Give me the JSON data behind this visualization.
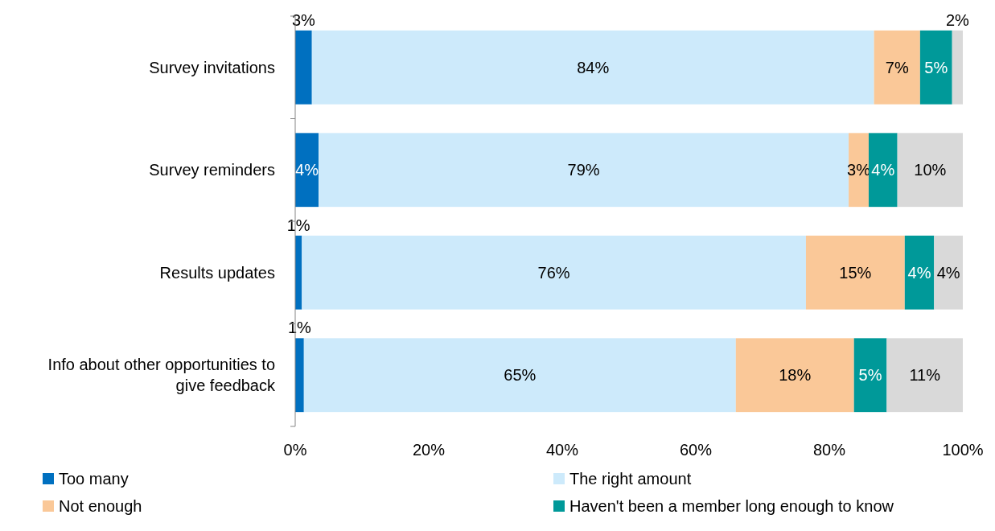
{
  "chart_data": {
    "type": "bar",
    "orientation": "horizontal",
    "stacked": true,
    "categories": [
      "Survey invitations",
      "Survey reminders",
      "Results updates",
      "Info about other opportunities to give feedback"
    ],
    "series": [
      {
        "name": "Too many",
        "color": "#0070c0",
        "values": [
          2.5,
          3.5,
          1.0,
          1.3
        ],
        "value_labels": [
          "3%",
          "4%",
          "1%",
          "1%"
        ]
      },
      {
        "name": "The right amount",
        "color": "#cdeafb",
        "values": [
          84.2,
          79.4,
          75.5,
          64.7
        ],
        "value_labels": [
          "84%",
          "79%",
          "76%",
          "65%"
        ]
      },
      {
        "name": "Not enough",
        "color": "#fac898",
        "values": [
          6.9,
          3.0,
          14.8,
          17.7
        ],
        "value_labels": [
          "7%",
          "3%",
          "15%",
          "18%"
        ]
      },
      {
        "name": "Haven't been a member long enough to know",
        "color": "#009999",
        "values": [
          4.8,
          4.3,
          4.4,
          4.9
        ],
        "value_labels": [
          "5%",
          "4%",
          "4%",
          "5%"
        ]
      },
      {
        "color": "#d9d9d9",
        "values": [
          1.6,
          9.8,
          4.3,
          11.4
        ],
        "value_labels": [
          "2%",
          "10%",
          "4%",
          "11%"
        ]
      }
    ],
    "xlim": [
      0,
      100
    ],
    "xticks": [
      {
        "value": 0,
        "label": "0%"
      },
      {
        "value": 20,
        "label": "20%"
      },
      {
        "value": 40,
        "label": "40%"
      },
      {
        "value": 60,
        "label": "60%"
      },
      {
        "value": 80,
        "label": "80%"
      },
      {
        "value": 100,
        "label": "100%"
      }
    ],
    "legend": "bottom"
  }
}
